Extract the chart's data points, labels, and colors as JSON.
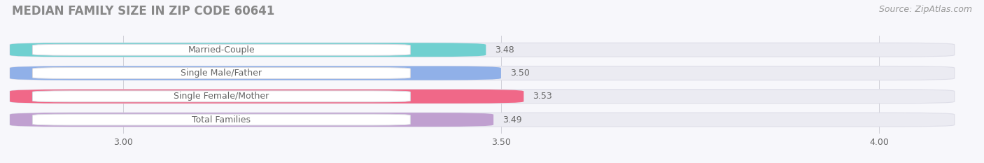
{
  "title": "MEDIAN FAMILY SIZE IN ZIP CODE 60641",
  "source": "Source: ZipAtlas.com",
  "categories": [
    "Married-Couple",
    "Single Male/Father",
    "Single Female/Mother",
    "Total Families"
  ],
  "values": [
    3.48,
    3.5,
    3.53,
    3.49
  ],
  "bar_colors": [
    "#70d0d0",
    "#90b0e8",
    "#f06888",
    "#c0a0d0"
  ],
  "xlim_min": 2.85,
  "xlim_max": 4.1,
  "xstart": 2.85,
  "xticks": [
    3.0,
    3.5,
    4.0
  ],
  "xtick_labels": [
    "3.00",
    "3.50",
    "4.00"
  ],
  "title_fontsize": 12,
  "source_fontsize": 9,
  "label_fontsize": 9,
  "value_fontsize": 9,
  "bar_height": 0.6,
  "bar_gap": 0.15,
  "background_color": "#f7f7fb",
  "bar_bg_color": "#ebebf2",
  "bar_border_color": "#dedee8",
  "label_box_color": "#ffffff",
  "label_box_border": "#d8d8e0",
  "text_color": "#666666",
  "grid_color": "#d0d0d8",
  "title_color": "#888888",
  "source_color": "#999999"
}
